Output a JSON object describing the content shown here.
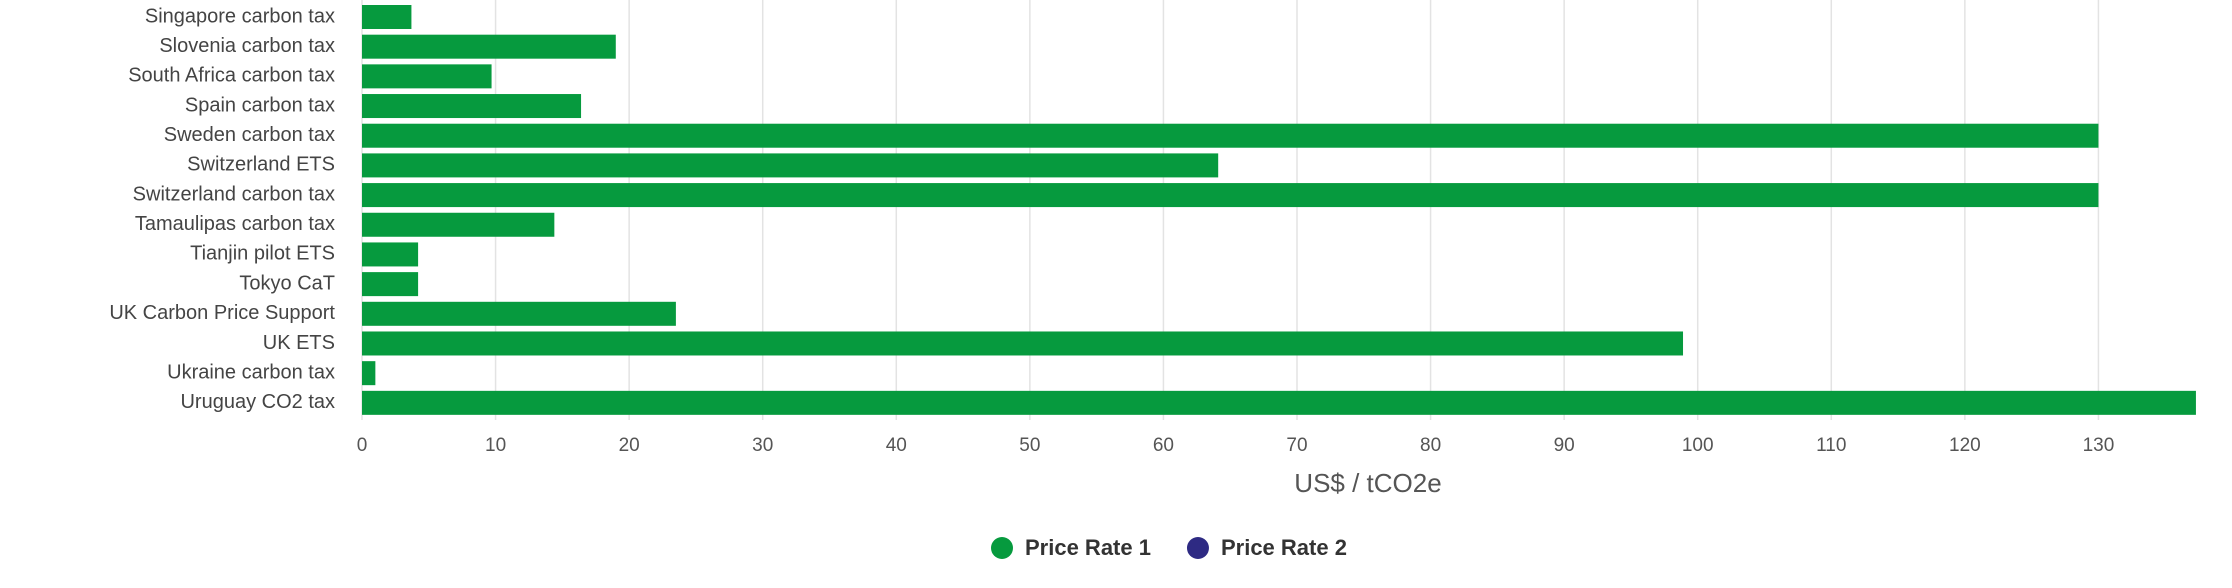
{
  "chart_data": {
    "type": "bar",
    "orientation": "horizontal",
    "x_label": "US$ / tCO2e",
    "categories": [
      "Singapore carbon tax",
      "Slovenia carbon tax",
      "South Africa carbon tax",
      "Spain carbon tax",
      "Sweden carbon tax",
      "Switzerland ETS",
      "Switzerland carbon tax",
      "Tamaulipas carbon tax",
      "Tianjin pilot ETS",
      "Tokyo CaT",
      "UK Carbon Price Support",
      "UK ETS",
      "Ukraine carbon tax",
      "Uruguay CO2 tax"
    ],
    "series": [
      {
        "name": "Price Rate 1",
        "color": "#069a3e",
        "values": [
          3.7,
          19.0,
          9.7,
          16.4,
          130,
          64.1,
          130,
          14.4,
          4.2,
          4.2,
          23.5,
          98.9,
          1,
          137.3
        ]
      },
      {
        "name": "Price Rate 2",
        "color": "#2e2a83",
        "values": [
          null,
          null,
          null,
          null,
          null,
          null,
          null,
          null,
          null,
          null,
          null,
          null,
          null,
          null
        ]
      }
    ],
    "xlim": [
      0,
      140
    ],
    "xticks": [
      0,
      10,
      20,
      30,
      40,
      50,
      60,
      70,
      80,
      90,
      100,
      110,
      120,
      130
    ],
    "grid": true,
    "legend": "bottom"
  }
}
